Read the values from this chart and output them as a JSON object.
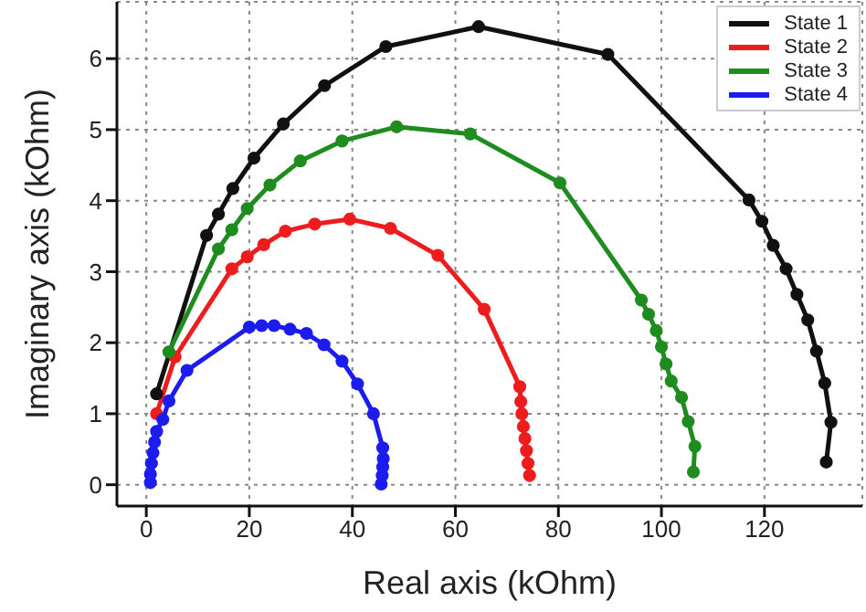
{
  "chart_data": {
    "type": "line",
    "xlabel": "Real axis (kOhm)",
    "ylabel": "Imaginary axis (kOhm)",
    "xlim": [
      -5.7,
      139
    ],
    "ylim": [
      -0.3,
      6.8
    ],
    "xticks": [
      0,
      20,
      40,
      60,
      80,
      100,
      120
    ],
    "yticks": [
      0,
      1,
      2,
      3,
      4,
      5,
      6
    ],
    "grid": true,
    "legend": "top right",
    "marker": "circle",
    "line_style": "solid",
    "series": [
      {
        "name": "State 1",
        "color": "#111111",
        "x": [
          2.0,
          11.7,
          14.0,
          16.8,
          20.9,
          26.6,
          34.6,
          46.5,
          64.5,
          89.6,
          117,
          119.5,
          121.7,
          124.2,
          126.3,
          128.4,
          130.1,
          131.7,
          132.9,
          132
        ],
        "values": [
          1.28,
          3.51,
          3.81,
          4.17,
          4.6,
          5.08,
          5.62,
          6.17,
          6.45,
          6.06,
          4.01,
          3.71,
          3.37,
          3.04,
          2.68,
          2.32,
          1.88,
          1.43,
          0.88,
          0.32
        ]
      },
      {
        "name": "State 2",
        "color": "#ee1c1c",
        "x": [
          2.0,
          5.6,
          16.6,
          19.6,
          22.8,
          27,
          32.7,
          39.5,
          47.4,
          56.6,
          65.6,
          72.5,
          72.7,
          72.9,
          73.2,
          73.5,
          73.8,
          74.1,
          74.4
        ],
        "values": [
          1.0,
          1.8,
          3.04,
          3.21,
          3.38,
          3.57,
          3.67,
          3.74,
          3.61,
          3.23,
          2.47,
          1.38,
          1.17,
          1.0,
          0.82,
          0.65,
          0.48,
          0.3,
          0.13
        ]
      },
      {
        "name": "State 3",
        "color": "#1e8c1e",
        "x": [
          4.4,
          14,
          16.6,
          19.6,
          24,
          29.9,
          38,
          48.6,
          62.9,
          80.3,
          96.1,
          97.5,
          99,
          100,
          100.9,
          101.9,
          103.9,
          105.2,
          106.5,
          106.2
        ],
        "values": [
          1.87,
          3.32,
          3.59,
          3.89,
          4.22,
          4.56,
          4.84,
          5.04,
          4.94,
          4.25,
          2.6,
          2.4,
          2.17,
          1.94,
          1.7,
          1.46,
          1.23,
          0.89,
          0.54,
          0.18
        ]
      },
      {
        "name": "State 4",
        "color": "#1c1cee",
        "x": [
          0.8,
          0.8,
          1.0,
          1.3,
          1.6,
          2.0,
          3.2,
          4.4,
          7.9,
          20,
          22.4,
          24.8,
          27.9,
          31.1,
          34.5,
          38,
          41,
          44.1,
          45.9,
          46.0,
          45.9,
          45.8,
          45.6
        ],
        "values": [
          0.03,
          0.15,
          0.3,
          0.45,
          0.6,
          0.75,
          0.92,
          1.18,
          1.61,
          2.22,
          2.24,
          2.24,
          2.19,
          2.13,
          1.97,
          1.74,
          1.42,
          1.0,
          0.52,
          0.37,
          0.25,
          0.13,
          0.01
        ]
      }
    ]
  }
}
